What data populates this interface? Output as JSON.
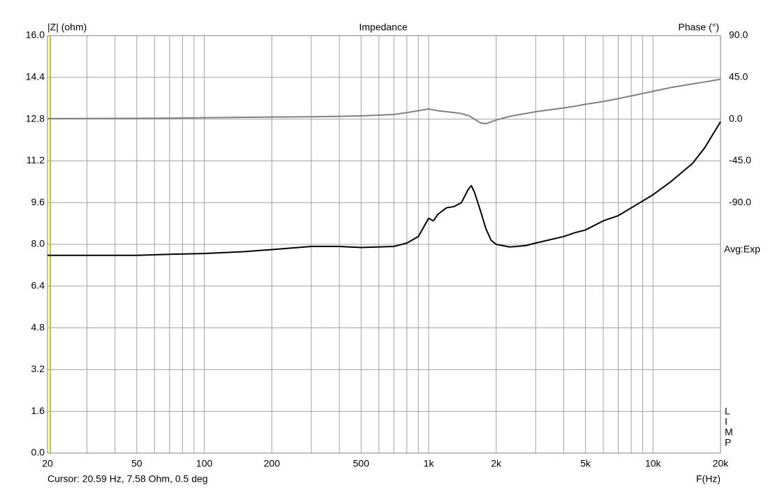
{
  "chart_data": {
    "type": "line",
    "title": "Impedance",
    "y_label": "|Z| (ohm)",
    "y2_label": "Phase (°)",
    "x_label": "F(Hz)",
    "avg_label": "Avg:Exp",
    "brand": [
      "L",
      "I",
      "M",
      "P"
    ],
    "cursor_label": "Cursor: 20.59 Hz, 7.58 Ohm, 0.5 deg",
    "cursor_x": 20.59,
    "cursor_color": "#c8c800",
    "log_x": true,
    "grid": true,
    "xlim": [
      20,
      20000
    ],
    "xticks": [
      20,
      50,
      100,
      200,
      500,
      {
        "value": 1000,
        "label": "1k"
      },
      {
        "value": 2000,
        "label": "2k"
      },
      {
        "value": 5000,
        "label": "5k"
      },
      {
        "value": 10000,
        "label": "10k"
      },
      {
        "value": 20000,
        "label": "20k"
      }
    ],
    "xminor": [
      30,
      40,
      60,
      70,
      80,
      90,
      300,
      400,
      600,
      700,
      800,
      900,
      3000,
      4000,
      6000,
      7000,
      8000,
      9000
    ],
    "ylim": [
      0,
      16
    ],
    "yticks": [
      {
        "value": 0,
        "label": "0.0"
      },
      1.6,
      3.2,
      4.8,
      6.4,
      {
        "value": 8,
        "label": "8.0"
      },
      9.6,
      11.2,
      12.8,
      14.4,
      {
        "value": 16,
        "label": "16.0"
      }
    ],
    "y2lim": [
      -360,
      90
    ],
    "y2ticks": [
      {
        "value": 90,
        "label": "90.0"
      },
      {
        "value": 45,
        "label": "45.0"
      },
      {
        "value": 0,
        "label": "0.0"
      },
      {
        "value": -45,
        "label": "-45.0"
      },
      {
        "value": -90,
        "label": "-90.0"
      }
    ],
    "x": [
      20,
      50,
      70,
      100,
      150,
      200,
      300,
      400,
      500,
      700,
      800,
      900,
      1000,
      1050,
      1100,
      1200,
      1300,
      1400,
      1500,
      1550,
      1600,
      1700,
      1800,
      1900,
      2000,
      2300,
      2700,
      3000,
      4000,
      4500,
      5000,
      6000,
      7000,
      8000,
      10000,
      12000,
      15000,
      17000,
      20000
    ],
    "series": [
      {
        "color": "#000000",
        "values": [
          7.58,
          7.58,
          7.62,
          7.65,
          7.72,
          7.8,
          7.92,
          7.92,
          7.88,
          7.92,
          8.05,
          8.3,
          9.0,
          8.9,
          9.15,
          9.4,
          9.45,
          9.6,
          10.1,
          10.25,
          10.0,
          9.3,
          8.6,
          8.15,
          8.0,
          7.9,
          7.95,
          8.05,
          8.3,
          8.45,
          8.55,
          8.9,
          9.1,
          9.4,
          9.9,
          10.4,
          11.1,
          11.7,
          12.7
        ]
      },
      {
        "color": "#808080",
        "axis": "y2",
        "values": [
          0.5,
          0.8,
          1.0,
          1.5,
          2.0,
          2.2,
          2.5,
          3.0,
          3.5,
          5.0,
          7.0,
          9.0,
          11.0,
          10.0,
          9.0,
          8.0,
          7.0,
          6.0,
          4.0,
          2.0,
          0.0,
          -4.0,
          -5.0,
          -3.0,
          -1.0,
          3.0,
          6.0,
          8.0,
          12.0,
          14.0,
          16.0,
          19.0,
          22.0,
          25.0,
          30.0,
          34.0,
          38.0,
          40.0,
          43.0
        ]
      }
    ]
  }
}
